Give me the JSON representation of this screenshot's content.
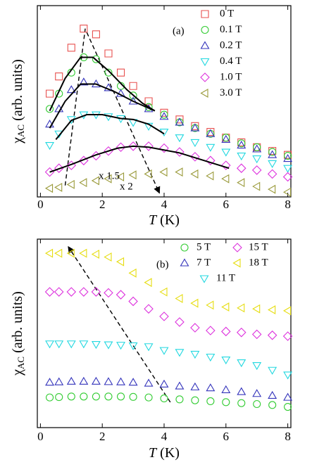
{
  "chart_data": [
    {
      "type": "scatter",
      "panel_label": "(a)",
      "xlabel": [
        "T",
        " (K)"
      ],
      "ylabel": [
        "χ",
        "AC",
        " (arb. units)"
      ],
      "xlim": [
        -0.1,
        8.1
      ],
      "ylim": [
        0,
        10
      ],
      "xticks": [
        0,
        2,
        4,
        6,
        8
      ],
      "legend": "upper right",
      "x": [
        0.3,
        0.6,
        1,
        1.4,
        1.8,
        2.2,
        2.6,
        3,
        3.5,
        4,
        4.5,
        5,
        5.5,
        6,
        6.5,
        7,
        7.5,
        8
      ],
      "series": [
        {
          "name": "0 T",
          "color": "#e8504f",
          "marker": "square",
          "values": [
            5.4,
            6.3,
            7.8,
            8.8,
            8.5,
            7.5,
            6.5,
            5.8,
            5.0,
            4.4,
            4.05,
            3.7,
            3.4,
            3.1,
            2.85,
            2.6,
            2.4,
            2.2
          ]
        },
        {
          "name": "0.1 T",
          "color": "#33cc33",
          "marker": "circle",
          "values": [
            4.6,
            5.4,
            6.5,
            7.3,
            7.2,
            6.5,
            5.8,
            5.3,
            4.7,
            4.3,
            3.9,
            3.6,
            3.3,
            3.1,
            2.8,
            2.6,
            2.35,
            2.15
          ]
        },
        {
          "name": "0.2 T",
          "color": "#3333bb",
          "marker": "triangle-up",
          "values": [
            3.8,
            4.6,
            5.6,
            6.0,
            5.9,
            5.7,
            5.4,
            5.0,
            4.6,
            4.2,
            3.9,
            3.6,
            3.3,
            3.0,
            2.7,
            2.5,
            2.2,
            2.0
          ]
        },
        {
          "name": "0.4 T",
          "color": "#22d8e0",
          "marker": "triangle-down",
          "values": [
            2.7,
            3.3,
            4.05,
            4.3,
            4.3,
            4.2,
            4.1,
            3.9,
            3.7,
            3.4,
            3.1,
            2.85,
            2.6,
            2.35,
            2.15,
            2.0,
            1.75,
            1.5
          ]
        },
        {
          "name": "1.0 T",
          "color": "#dd33dd",
          "marker": "diamond",
          "values": [
            1.3,
            1.5,
            1.65,
            1.9,
            2.15,
            2.4,
            2.6,
            2.65,
            2.65,
            2.55,
            2.35,
            2.1,
            1.9,
            1.65,
            1.5,
            1.4,
            1.2,
            1.05
          ]
        },
        {
          "name": "3.0 T",
          "color": "#9a9a3a",
          "marker": "triangle-left",
          "values": [
            0.45,
            0.5,
            0.65,
            0.75,
            0.85,
            0.95,
            1.05,
            1.15,
            1.2,
            1.3,
            1.3,
            1.2,
            1.1,
            0.95,
            0.75,
            0.55,
            0.4,
            0.25
          ]
        }
      ],
      "fits": [
        {
          "x": [
            0.3,
            0.8,
            1.3,
            1.7,
            2.2,
            2.8,
            3.3,
            3.7
          ],
          "y": [
            4.5,
            6.2,
            7.3,
            7.3,
            6.6,
            5.6,
            4.9,
            4.5
          ]
        },
        {
          "x": [
            0.3,
            0.8,
            1.3,
            1.8,
            2.4,
            3,
            3.7
          ],
          "y": [
            3.6,
            5.0,
            5.9,
            5.9,
            5.5,
            5.0,
            4.5
          ]
        },
        {
          "x": [
            0.5,
            1,
            1.5,
            2,
            2.6,
            3,
            3.5,
            4
          ],
          "y": [
            3.0,
            4.0,
            4.3,
            4.3,
            4.1,
            4.05,
            3.8,
            3.3
          ]
        },
        {
          "x": [
            0.3,
            1,
            1.8,
            2.5,
            3,
            3.5,
            4.5,
            5.5,
            6.1
          ],
          "y": [
            1.3,
            1.7,
            2.2,
            2.55,
            2.65,
            2.6,
            2.3,
            1.8,
            1.5
          ]
        }
      ],
      "annotations": [
        {
          "text": "x 1.5",
          "color": "#dd33dd"
        },
        {
          "text": "x 2",
          "color": "#2a8a2a"
        }
      ]
    },
    {
      "type": "scatter",
      "panel_label": "(b)",
      "xlabel": [
        "T",
        " (K)"
      ],
      "ylabel": [
        "χ",
        "AC",
        " (arb. units)"
      ],
      "xlim": [
        -0.1,
        8.1
      ],
      "ylim": [
        0,
        10
      ],
      "xticks": [
        0,
        2,
        4,
        6,
        8
      ],
      "legend": "upper right",
      "x": [
        0.3,
        0.6,
        1,
        1.4,
        1.8,
        2.2,
        2.6,
        3,
        3.5,
        4,
        4.5,
        5,
        5.5,
        6,
        6.5,
        7,
        7.5,
        8
      ],
      "series": [
        {
          "name": "5 T",
          "color": "#33cc33",
          "marker": "circle",
          "values": [
            1.6,
            1.62,
            1.65,
            1.65,
            1.65,
            1.65,
            1.65,
            1.63,
            1.6,
            1.55,
            1.5,
            1.45,
            1.4,
            1.35,
            1.3,
            1.25,
            1.2,
            1.1
          ]
        },
        {
          "name": "7 T",
          "color": "#3333bb",
          "marker": "triangle-up",
          "values": [
            2.4,
            2.42,
            2.45,
            2.45,
            2.45,
            2.43,
            2.42,
            2.4,
            2.35,
            2.3,
            2.2,
            2.15,
            2.1,
            2.0,
            1.9,
            1.8,
            1.7,
            1.6
          ]
        },
        {
          "name": "11 T",
          "color": "#22d8e0",
          "marker": "triangle-down",
          "values": [
            4.45,
            4.45,
            4.45,
            4.45,
            4.42,
            4.4,
            4.38,
            4.35,
            4.3,
            4.1,
            4.0,
            3.9,
            3.75,
            3.6,
            3.45,
            3.3,
            3.05,
            2.8
          ]
        },
        {
          "name": "15 T",
          "color": "#dd33dd",
          "marker": "diamond",
          "values": [
            7.2,
            7.2,
            7.2,
            7.2,
            7.2,
            7.15,
            7.05,
            6.7,
            6.3,
            5.9,
            5.6,
            5.3,
            5.15,
            5.1,
            5.05,
            4.95,
            4.9,
            4.85
          ]
        },
        {
          "name": "18 T",
          "color": "#e6dd10",
          "marker": "triangle-left",
          "values": [
            9.25,
            9.25,
            9.25,
            9.25,
            9.2,
            9.05,
            8.8,
            8.2,
            7.7,
            7.2,
            6.85,
            6.6,
            6.5,
            6.4,
            6.35,
            6.3,
            6.25,
            6.2
          ]
        }
      ]
    }
  ]
}
